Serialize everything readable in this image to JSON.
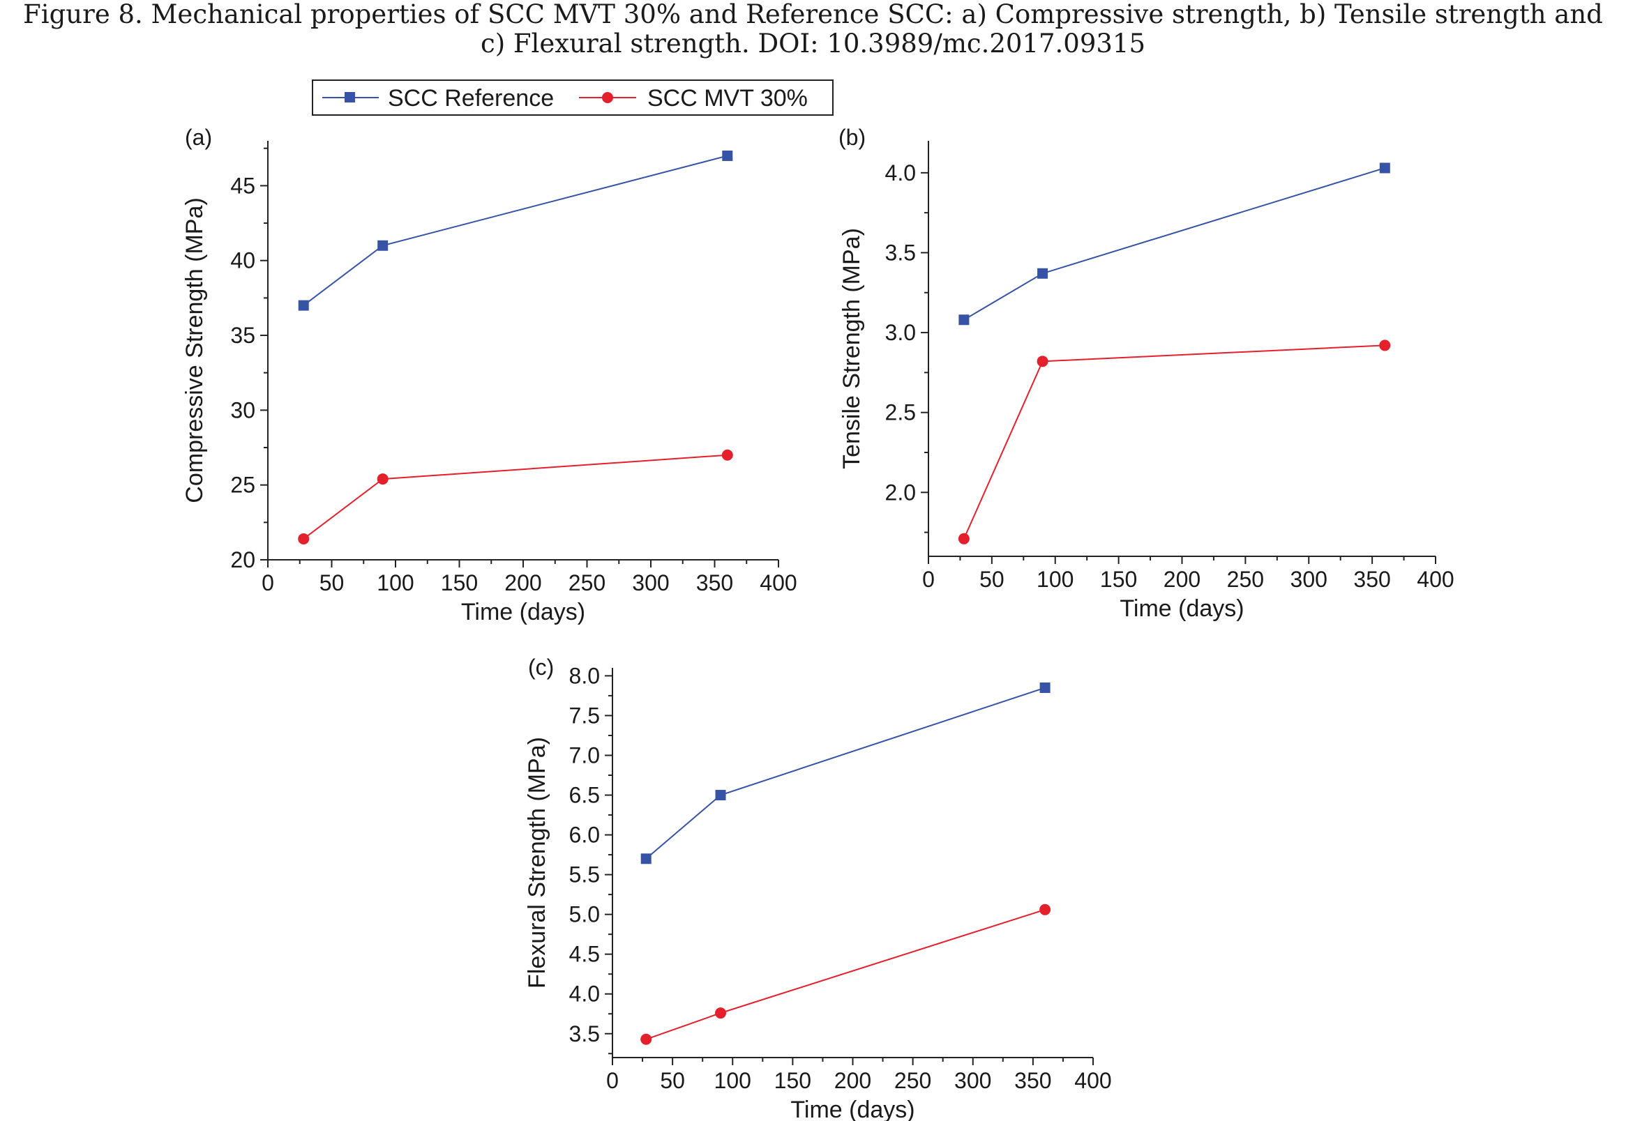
{
  "caption": {
    "line1": "Figure 8.    Mechanical properties of SCC MVT 30% and Reference SCC: a) Compressive strength, b) Tensile strength and",
    "line2": "c) Flexural strength. DOI: 10.3989/mc.2017.09315"
  },
  "legend": {
    "items": [
      {
        "label": "SCC Reference",
        "color": "#3653a5",
        "marker": "square"
      },
      {
        "label": "SCC MVT 30%",
        "color": "#e3202b",
        "marker": "circle"
      }
    ]
  },
  "chart_data": [
    {
      "type": "line",
      "panel_label": "(a)",
      "xlabel": "Time (days)",
      "ylabel": "Compressive Strength (MPa)",
      "xlim": [
        0,
        400
      ],
      "ylim": [
        20,
        48
      ],
      "xticks": [
        0,
        50,
        100,
        150,
        200,
        250,
        300,
        350,
        400
      ],
      "yticks": [
        20,
        25,
        30,
        35,
        40,
        45
      ],
      "ytick_labels": [
        "20",
        "25",
        "30",
        "35",
        "40",
        "45"
      ],
      "x": [
        28,
        90,
        360
      ],
      "series": [
        {
          "name": "SCC Reference",
          "values": [
            37.0,
            41.0,
            47.0
          ]
        },
        {
          "name": "SCC MVT 30%",
          "values": [
            21.4,
            25.4,
            27.0
          ]
        }
      ]
    },
    {
      "type": "line",
      "panel_label": "(b)",
      "xlabel": "Time (days)",
      "ylabel": "Tensile Strength (MPa)",
      "xlim": [
        0,
        400
      ],
      "ylim": [
        1.6,
        4.2
      ],
      "xticks": [
        0,
        50,
        100,
        150,
        200,
        250,
        300,
        350,
        400
      ],
      "yticks": [
        2.0,
        2.5,
        3.0,
        3.5,
        4.0
      ],
      "ytick_labels": [
        "2.0",
        "2.5",
        "3.0",
        "3.5",
        "4.0"
      ],
      "x": [
        28,
        90,
        360
      ],
      "series": [
        {
          "name": "SCC Reference",
          "values": [
            3.08,
            3.37,
            4.03
          ]
        },
        {
          "name": "SCC MVT 30%",
          "values": [
            1.71,
            2.82,
            2.92
          ]
        }
      ]
    },
    {
      "type": "line",
      "panel_label": "(c)",
      "xlabel": "Time (days)",
      "ylabel": "Flexural Strength (MPa)",
      "xlim": [
        0,
        400
      ],
      "ylim": [
        3.2,
        8.1
      ],
      "xticks": [
        0,
        50,
        100,
        150,
        200,
        250,
        300,
        350,
        400
      ],
      "yticks": [
        3.5,
        4.0,
        4.5,
        5.0,
        5.5,
        6.0,
        6.5,
        7.0,
        7.5,
        8.0
      ],
      "ytick_labels": [
        "3.5",
        "4.0",
        "4.5",
        "5.0",
        "5.5",
        "6.0",
        "6.5",
        "7.0",
        "7.5",
        "8.0"
      ],
      "x": [
        28,
        90,
        360
      ],
      "series": [
        {
          "name": "SCC Reference",
          "values": [
            5.7,
            6.5,
            7.85
          ]
        },
        {
          "name": "SCC MVT 30%",
          "values": [
            3.43,
            3.76,
            5.06
          ]
        }
      ]
    }
  ]
}
